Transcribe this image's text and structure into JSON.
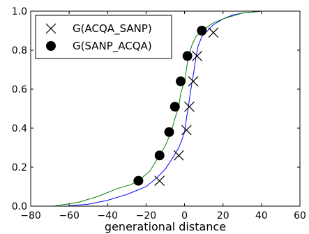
{
  "chart_data": {
    "type": "line",
    "xlabel": "generational distance",
    "ylabel": "",
    "xlim": [
      -80,
      60
    ],
    "ylim": [
      0.0,
      1.0
    ],
    "xticks": [
      -80,
      -60,
      -40,
      -20,
      0,
      20,
      40,
      60
    ],
    "xtick_labels": [
      "−80",
      "−60",
      "−40",
      "−20",
      "0",
      "20",
      "40",
      "60"
    ],
    "yticks": [
      0.0,
      0.2,
      0.4,
      0.6,
      0.8,
      1.0
    ],
    "ytick_labels": [
      "0.0",
      "0.2",
      "0.4",
      "0.6",
      "0.8",
      "1.0"
    ],
    "grid": false,
    "legend_position": "top-left",
    "series": [
      {
        "name": "G(ACQA_SANP)",
        "color": "#0000ff",
        "marker": "x",
        "curve_x": [
          -62,
          -50,
          -40,
          -30,
          -25,
          -20,
          -15,
          -10,
          -6,
          -3,
          -1,
          0,
          1,
          2,
          3,
          4,
          5,
          6,
          7,
          9,
          12,
          15,
          20,
          25,
          30,
          40,
          50
        ],
        "curve_y": [
          0.0,
          0.01,
          0.03,
          0.06,
          0.08,
          0.1,
          0.14,
          0.19,
          0.25,
          0.3,
          0.35,
          0.38,
          0.45,
          0.51,
          0.58,
          0.64,
          0.7,
          0.77,
          0.82,
          0.87,
          0.9,
          0.93,
          0.96,
          0.98,
          0.99,
          1.0,
          1.0
        ],
        "marker_x": [
          -13,
          -3,
          1,
          2.5,
          4.5,
          6.5,
          15
        ],
        "marker_y": [
          0.13,
          0.26,
          0.39,
          0.51,
          0.64,
          0.77,
          0.89
        ]
      },
      {
        "name": "G(SANP_ACQA)",
        "color": "#008000",
        "marker": "o",
        "curve_x": [
          -68,
          -55,
          -45,
          -35,
          -28,
          -24,
          -18,
          -13,
          -10,
          -7,
          -5,
          -3,
          -2,
          0,
          2,
          4,
          6,
          9,
          12,
          15,
          20,
          30,
          40,
          50
        ],
        "curve_y": [
          0.0,
          0.02,
          0.05,
          0.09,
          0.11,
          0.13,
          0.18,
          0.26,
          0.31,
          0.38,
          0.45,
          0.51,
          0.58,
          0.64,
          0.77,
          0.83,
          0.87,
          0.9,
          0.92,
          0.94,
          0.96,
          0.99,
          1.0,
          1.0
        ],
        "marker_x": [
          -24,
          -13,
          -8,
          -5,
          -2,
          1.5,
          9
        ],
        "marker_y": [
          0.13,
          0.26,
          0.38,
          0.51,
          0.64,
          0.77,
          0.9
        ]
      }
    ]
  }
}
